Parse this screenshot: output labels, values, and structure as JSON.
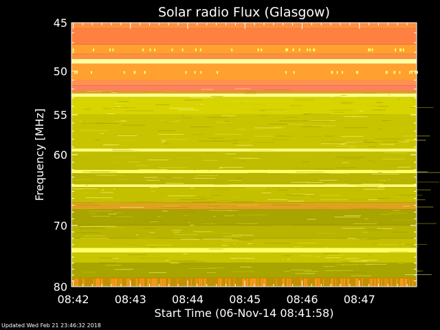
{
  "chart_data": {
    "type": "heatmap",
    "title": "Solar radio Flux (Glasgow)",
    "xlabel": "Start Time (06-Nov-14 08:41:58)",
    "ylabel": "Frequency [MHz]",
    "x_start_minutes": 41.97,
    "x_end_minutes": 48.0,
    "xlim_labels": [
      "08:42",
      "08:43",
      "08:44",
      "08:45",
      "08:46",
      "08:47"
    ],
    "x_tick_minutes": [
      42,
      43,
      44,
      45,
      46,
      47
    ],
    "ylim": [
      45,
      80
    ],
    "y_ticks": [
      45,
      50,
      55,
      60,
      70,
      80
    ],
    "y_scale": "log",
    "colormap": [
      "#a09a00",
      "#c8c400",
      "#e0e000",
      "#f0f040",
      "#ffff80",
      "#ffa030",
      "#ff8040",
      "#ff9060"
    ],
    "bands": [
      {
        "from": 45.0,
        "to": 45.6,
        "color": "#ff9040"
      },
      {
        "from": 45.6,
        "to": 47.2,
        "color": "#ff8040"
      },
      {
        "from": 47.2,
        "to": 48.2,
        "color": "#ffa030"
      },
      {
        "from": 48.2,
        "to": 48.7,
        "color": "#ff9040"
      },
      {
        "from": 48.7,
        "to": 49.2,
        "color": "#ffffa0"
      },
      {
        "from": 49.2,
        "to": 51.0,
        "color": "#ffa030"
      },
      {
        "from": 51.0,
        "to": 51.6,
        "color": "#ff9050"
      },
      {
        "from": 51.6,
        "to": 52.2,
        "color": "#ff8060"
      },
      {
        "from": 52.2,
        "to": 52.5,
        "color": "#e0a020"
      },
      {
        "from": 52.5,
        "to": 52.9,
        "color": "#ffff90"
      },
      {
        "from": 52.9,
        "to": 55.0,
        "color": "#d8d400"
      },
      {
        "from": 55.0,
        "to": 59.2,
        "color": "#c8c400"
      },
      {
        "from": 59.2,
        "to": 59.6,
        "color": "#ffff80"
      },
      {
        "from": 59.6,
        "to": 62.0,
        "color": "#c0bc00"
      },
      {
        "from": 62.0,
        "to": 62.5,
        "color": "#ffff60"
      },
      {
        "from": 62.5,
        "to": 64.0,
        "color": "#b8b400"
      },
      {
        "from": 64.0,
        "to": 64.4,
        "color": "#ffff70"
      },
      {
        "from": 64.4,
        "to": 66.6,
        "color": "#c4c000"
      },
      {
        "from": 66.6,
        "to": 67.6,
        "color": "#e0a020"
      },
      {
        "from": 67.6,
        "to": 70.0,
        "color": "#a8a400"
      },
      {
        "from": 70.0,
        "to": 72.0,
        "color": "#b8b400"
      },
      {
        "from": 72.0,
        "to": 73.5,
        "color": "#c4c000"
      },
      {
        "from": 73.5,
        "to": 74.3,
        "color": "#ffff60"
      },
      {
        "from": 74.3,
        "to": 76.0,
        "color": "#c8c400"
      },
      {
        "from": 76.0,
        "to": 78.4,
        "color": "#a8a400"
      },
      {
        "from": 78.4,
        "to": 80.0,
        "color": "#c09000"
      }
    ]
  },
  "footer": {
    "updated": "Updated Wed Feb 21 23:46:32 2018"
  }
}
